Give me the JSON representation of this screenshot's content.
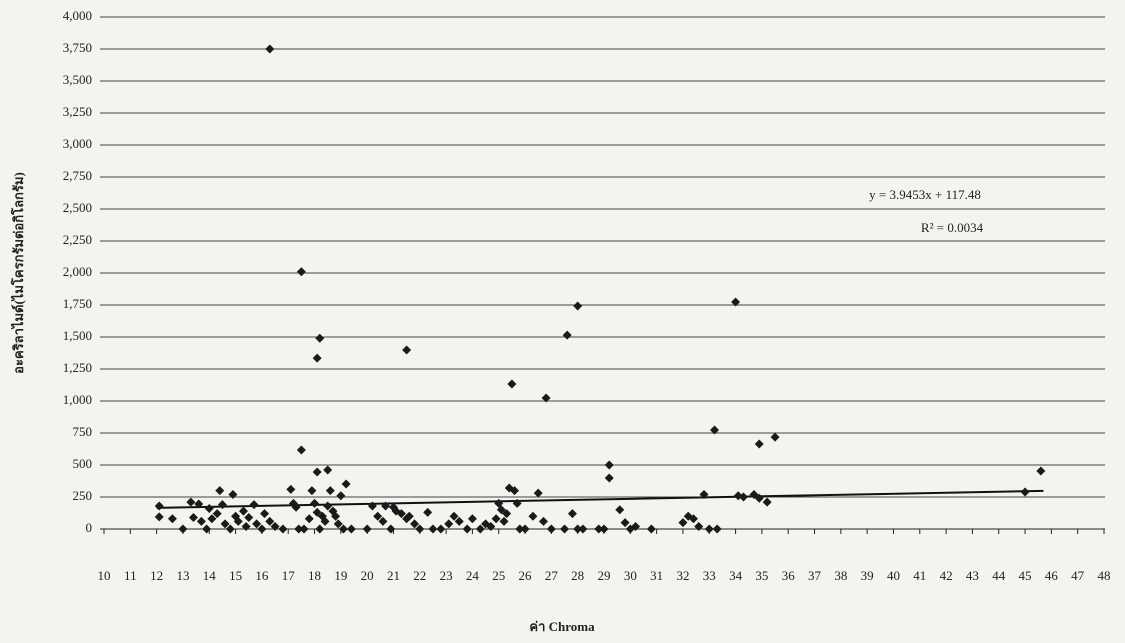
{
  "chart_data": {
    "type": "scatter",
    "y_label": "อะคริลาไมด์(ไมโครกรัมต่อกิโลกรัม)",
    "x_label": "ค่า Chroma",
    "color": "#1a1a1a",
    "grid": true,
    "xlim": [
      10,
      48
    ],
    "xticks": [
      10,
      11,
      12,
      13,
      14,
      15,
      16,
      17,
      18,
      19,
      20,
      21,
      22,
      23,
      24,
      25,
      26,
      27,
      28,
      29,
      30,
      31,
      32,
      33,
      34,
      35,
      36,
      37,
      38,
      39,
      40,
      41,
      42,
      43,
      44,
      45,
      46,
      47,
      48
    ],
    "ylim": [
      0,
      4000
    ],
    "yticks": [
      0,
      250,
      500,
      750,
      {
        "value": 1000,
        "label": "1,000"
      },
      {
        "value": 1250,
        "label": "1,250"
      },
      {
        "value": 1500,
        "label": "1,500"
      },
      {
        "value": 1750,
        "label": "1,750"
      },
      {
        "value": 2000,
        "label": "2,000"
      },
      {
        "value": 2250,
        "label": "2,250"
      },
      {
        "value": 2500,
        "label": "2,500"
      },
      {
        "value": 2750,
        "label": "2,750"
      },
      {
        "value": 3000,
        "label": "3,000"
      },
      {
        "value": 3250,
        "label": "3,250"
      },
      {
        "value": 3500,
        "label": "3,500"
      },
      {
        "value": 3750,
        "label": "3,750"
      },
      {
        "value": 4000,
        "label": "4,000"
      }
    ],
    "trendline": {
      "label": "y = 3.9453x + 117.48",
      "r2_label": "R² = 0.0034",
      "slope": 3.9453,
      "intercept": 117.48,
      "x_start": 12,
      "x_end": 45.7
    },
    "x": [
      16.3,
      17.5,
      18.2,
      18.1,
      21.5,
      25.5,
      26.8,
      27.6,
      28.0,
      34.0,
      33.2,
      34.9,
      35.5,
      45.6,
      45.0,
      17.5,
      18.1,
      18.5,
      19.2,
      29.2,
      29.2,
      12.1,
      12.1,
      12.6,
      13.0,
      13.3,
      13.4,
      13.6,
      13.7,
      13.9,
      14.0,
      14.1,
      14.3,
      14.4,
      14.5,
      14.6,
      14.8,
      14.9,
      15.0,
      15.1,
      15.3,
      15.4,
      15.5,
      15.7,
      15.8,
      16.0,
      16.1,
      16.3,
      16.5,
      16.8,
      17.1,
      17.2,
      17.3,
      17.4,
      17.6,
      17.8,
      17.9,
      18.0,
      18.1,
      18.2,
      18.3,
      18.4,
      18.5,
      18.6,
      18.7,
      18.8,
      18.9,
      19.0,
      19.1,
      19.4,
      20.0,
      20.2,
      20.4,
      20.6,
      20.7,
      20.9,
      21.0,
      21.1,
      21.3,
      21.5,
      21.6,
      21.8,
      22.0,
      22.3,
      22.5,
      22.8,
      23.1,
      23.3,
      23.5,
      23.8,
      24.0,
      24.3,
      24.5,
      24.7,
      24.9,
      25.0,
      25.1,
      25.2,
      25.3,
      25.4,
      25.6,
      25.7,
      25.8,
      26.0,
      26.3,
      26.5,
      26.7,
      27.0,
      27.5,
      27.8,
      28.0,
      28.2,
      28.8,
      29.0,
      29.6,
      29.8,
      30.0,
      30.2,
      30.8,
      32.0,
      32.2,
      32.4,
      32.6,
      32.8,
      33.0,
      33.3,
      34.1,
      34.3,
      34.7,
      34.9,
      35.2
    ],
    "values": [
      3750,
      2010,
      1490,
      1335,
      1398,
      1133,
      1023,
      1515,
      1742,
      1773,
      773,
      664,
      718,
      453,
      289,
      617,
      445,
      461,
      352,
      500,
      398,
      180,
      95,
      80,
      0,
      210,
      90,
      195,
      60,
      0,
      160,
      80,
      120,
      300,
      190,
      40,
      0,
      270,
      100,
      60,
      140,
      20,
      90,
      190,
      40,
      0,
      120,
      60,
      20,
      0,
      310,
      200,
      170,
      0,
      0,
      80,
      300,
      200,
      130,
      0,
      100,
      60,
      180,
      300,
      140,
      100,
      40,
      260,
      0,
      0,
      0,
      180,
      100,
      60,
      180,
      0,
      170,
      140,
      120,
      80,
      100,
      40,
      0,
      130,
      0,
      0,
      40,
      100,
      60,
      0,
      80,
      0,
      40,
      20,
      80,
      200,
      150,
      60,
      120,
      320,
      300,
      200,
      0,
      0,
      100,
      280,
      60,
      0,
      0,
      120,
      0,
      0,
      0,
      0,
      150,
      50,
      0,
      20,
      0,
      50,
      100,
      80,
      20,
      270,
      0,
      0,
      260,
      250,
      270,
      240,
      210
    ]
  }
}
